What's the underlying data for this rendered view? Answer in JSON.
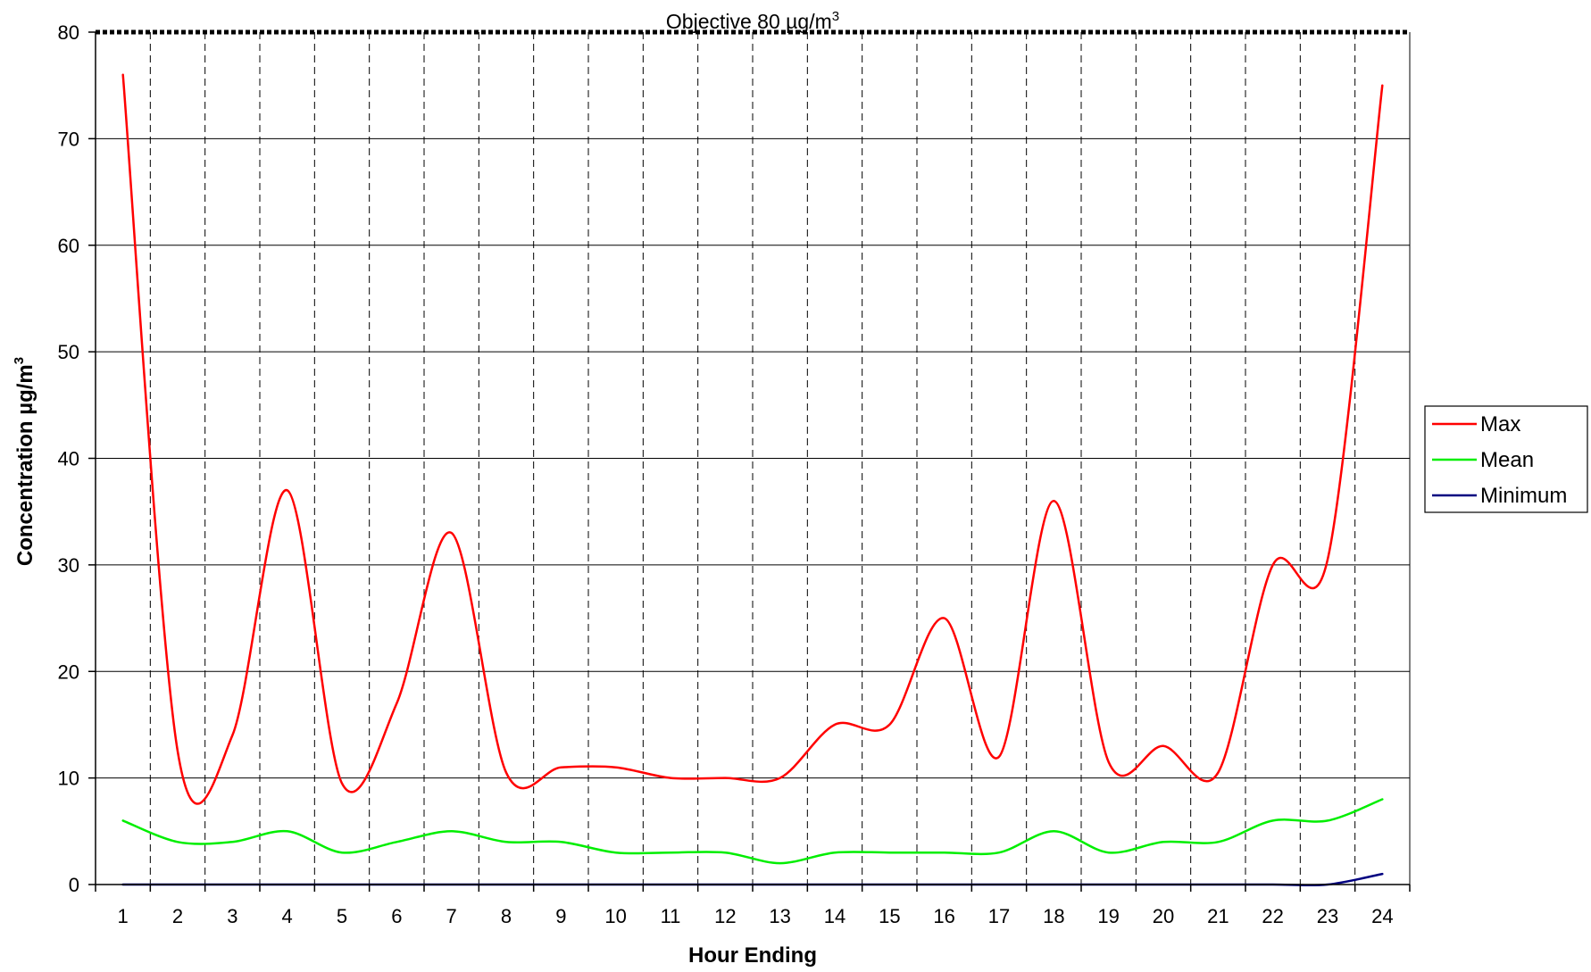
{
  "chart_data": {
    "type": "line",
    "x": [
      1,
      2,
      3,
      4,
      5,
      6,
      7,
      8,
      9,
      10,
      11,
      12,
      13,
      14,
      15,
      16,
      17,
      18,
      19,
      20,
      21,
      22,
      23,
      24
    ],
    "xlabel": "Hour Ending",
    "ylabel": "Concentration µg/m",
    "ylabel_superscript": "3",
    "ylim": [
      0,
      80
    ],
    "yticks": [
      0,
      10,
      20,
      30,
      40,
      50,
      60,
      70,
      80
    ],
    "grid": "horizontal solid, vertical dashed",
    "legend_position": "right",
    "objective": {
      "value": 80,
      "label": "Objective 80 µg/m",
      "label_superscript": "3"
    },
    "series": [
      {
        "name": "Max",
        "color": "#ff0000",
        "values": [
          76,
          12.5,
          14,
          37,
          9.5,
          17,
          33,
          10.5,
          11,
          11,
          10,
          10,
          10,
          15,
          15,
          25,
          12,
          36,
          11.5,
          13,
          10.5,
          30,
          30.5,
          75
        ]
      },
      {
        "name": "Mean",
        "color": "#00ee00",
        "values": [
          6,
          4,
          4,
          5,
          3,
          4,
          5,
          4,
          4,
          3,
          3,
          3,
          2,
          3,
          3,
          3,
          3,
          5,
          3,
          4,
          4,
          6,
          6,
          8
        ]
      },
      {
        "name": "Minimum",
        "color": "#000080",
        "values": [
          0,
          0,
          0,
          0,
          0,
          0,
          0,
          0,
          0,
          0,
          0,
          0,
          0,
          0,
          0,
          0,
          0,
          0,
          0,
          0,
          0,
          0,
          0,
          1
        ]
      }
    ]
  }
}
